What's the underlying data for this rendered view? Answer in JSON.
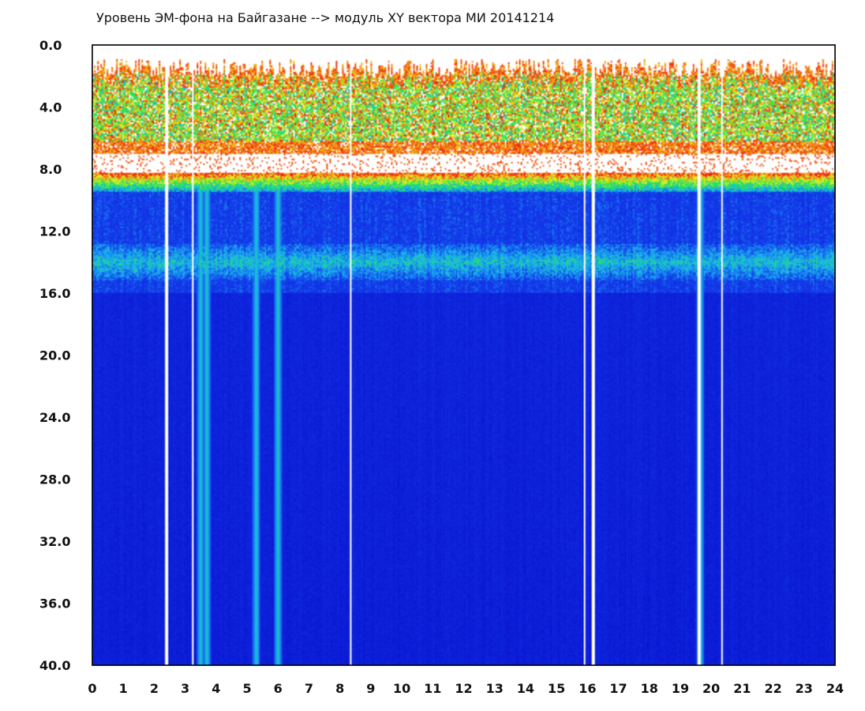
{
  "chart_data": {
    "type": "heatmap",
    "title": "Уровень ЭМ-фона на Байгазане  --> модуль XY вектора МИ  20141214",
    "xlabel": "",
    "ylabel": "",
    "xlim": [
      0,
      24
    ],
    "ylim": [
      0,
      40
    ],
    "y_inverted": true,
    "x_ticks": [
      "0",
      "1",
      "2",
      "3",
      "4",
      "5",
      "6",
      "7",
      "8",
      "9",
      "10",
      "11",
      "12",
      "13",
      "14",
      "15",
      "16",
      "17",
      "18",
      "19",
      "20",
      "21",
      "22",
      "23",
      "24"
    ],
    "y_ticks": [
      "0.0",
      "4.0",
      "8.0",
      "12.0",
      "16.0",
      "20.0",
      "24.0",
      "28.0",
      "32.0",
      "36.0",
      "40.0"
    ],
    "colors": {
      "background_low": "#0a16d2",
      "mid": "#19b4f0",
      "high_green": "#28e650",
      "high_yellow": "#f0f01e",
      "peak_red": "#f01e14",
      "gap": "#ffffff"
    },
    "bands": [
      {
        "from": 1.5,
        "to": 7.0,
        "level": "high",
        "colors": "red-yellow-green"
      },
      {
        "from": 7.0,
        "to": 8.2,
        "level": "gap"
      },
      {
        "from": 8.2,
        "to": 9.5,
        "level": "transition",
        "colors": "red-green-cyan"
      },
      {
        "from": 9.5,
        "to": 16.0,
        "level": "medium",
        "note_peak": 14.0
      },
      {
        "from": 16.0,
        "to": 40.0,
        "level": "low"
      }
    ],
    "vertical_gaps_x": [
      2.4,
      3.25,
      8.35,
      15.9,
      16.2,
      19.6,
      20.35
    ],
    "vertical_dips_x": [
      3.5,
      3.7,
      5.3,
      6.0,
      19.65
    ]
  }
}
